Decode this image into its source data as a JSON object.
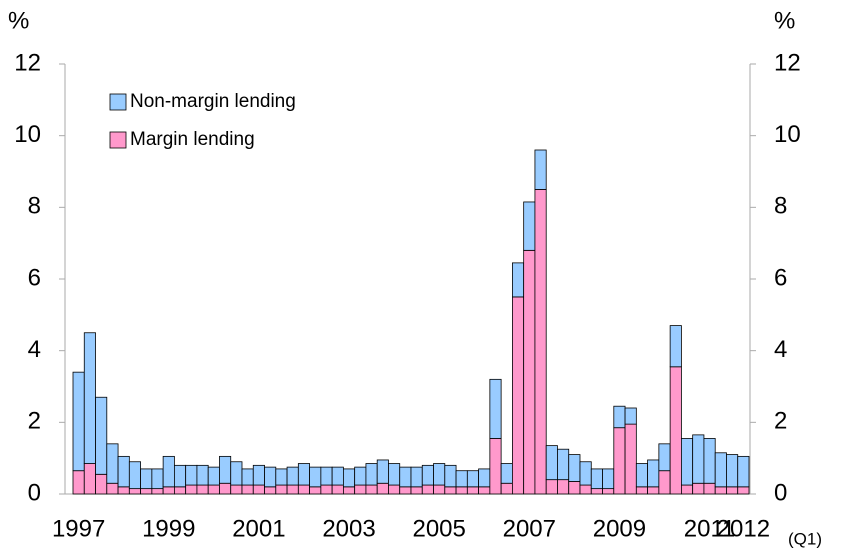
{
  "chart_data": {
    "type": "stacked_bar",
    "y_label": "%",
    "y2_label": "%",
    "x_note": "(Q1)",
    "categories": [
      "1997",
      null,
      null,
      null,
      null,
      null,
      null,
      null,
      "1999",
      null,
      null,
      null,
      null,
      null,
      null,
      null,
      "2001",
      null,
      null,
      null,
      null,
      null,
      null,
      null,
      "2003",
      null,
      null,
      null,
      null,
      null,
      null,
      null,
      "2005",
      null,
      null,
      null,
      null,
      null,
      null,
      null,
      "2007",
      null,
      null,
      null,
      null,
      null,
      null,
      null,
      "2009",
      null,
      null,
      null,
      null,
      null,
      null,
      null,
      "2011",
      null,
      null,
      "2012"
    ],
    "series": [
      {
        "name": "Non-margin lending",
        "color": "#99ccff",
        "values": [
          2.75,
          3.65,
          2.15,
          1.1,
          0.85,
          0.75,
          0.55,
          0.55,
          0.85,
          0.6,
          0.55,
          0.55,
          0.5,
          0.75,
          0.65,
          0.45,
          0.55,
          0.55,
          0.45,
          0.5,
          0.6,
          0.55,
          0.5,
          0.5,
          0.5,
          0.5,
          0.6,
          0.65,
          0.6,
          0.55,
          0.55,
          0.55,
          0.6,
          0.6,
          0.45,
          0.45,
          0.5,
          1.65,
          0.55,
          0.95,
          1.35,
          1.1,
          0.95,
          0.85,
          0.75,
          0.65,
          0.55,
          0.55,
          0.6,
          0.45,
          0.65,
          0.75,
          0.75,
          1.15,
          1.3,
          1.35,
          1.25,
          0.95,
          0.9,
          0.85
        ]
      },
      {
        "name": "Margin lending",
        "color": "#ff99cc",
        "values": [
          0.65,
          0.85,
          0.55,
          0.3,
          0.2,
          0.15,
          0.15,
          0.15,
          0.2,
          0.2,
          0.25,
          0.25,
          0.25,
          0.3,
          0.25,
          0.25,
          0.25,
          0.2,
          0.25,
          0.25,
          0.25,
          0.2,
          0.25,
          0.25,
          0.2,
          0.25,
          0.25,
          0.3,
          0.25,
          0.2,
          0.2,
          0.25,
          0.25,
          0.2,
          0.2,
          0.2,
          0.2,
          1.55,
          0.3,
          5.5,
          6.8,
          8.5,
          0.4,
          0.4,
          0.35,
          0.25,
          0.15,
          0.15,
          1.85,
          1.95,
          0.2,
          0.2,
          0.65,
          3.55,
          0.25,
          0.3,
          0.3,
          0.2,
          0.2,
          0.2
        ]
      }
    ],
    "ylim": [
      0,
      12
    ],
    "yticks": [
      0,
      2,
      4,
      6,
      8,
      10,
      12
    ],
    "y2lim": [
      0,
      12
    ],
    "y2ticks": [
      0,
      2,
      4,
      6,
      8,
      10,
      12
    ],
    "grid": false,
    "legend": "upper left"
  }
}
